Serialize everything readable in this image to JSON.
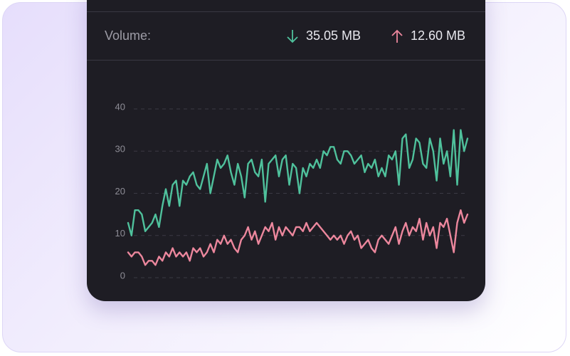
{
  "header": {
    "label": "Volume:",
    "down": "35.05 MB",
    "up": "12.60 MB"
  },
  "chart_data": {
    "type": "line",
    "ylim": [
      0,
      40
    ],
    "yticks": [
      0,
      10,
      20,
      30,
      40
    ],
    "grid": true,
    "series": [
      {
        "color": "#4fc19c",
        "values": [
          13,
          10,
          16,
          16,
          15,
          11,
          12,
          13,
          15,
          12,
          17,
          21,
          17,
          22,
          23,
          17,
          23,
          22,
          24,
          25,
          22,
          21,
          24,
          27,
          20,
          24,
          28,
          26,
          27,
          29,
          25,
          22,
          27,
          24,
          19,
          27,
          28,
          25,
          24,
          28,
          18,
          27,
          28,
          29,
          24,
          28,
          29,
          22,
          27,
          26,
          20,
          26,
          24,
          27,
          26,
          28,
          26,
          30,
          29,
          31,
          31,
          28,
          27,
          30,
          30,
          29,
          27,
          28,
          29,
          25,
          27,
          26,
          28,
          24,
          26,
          24,
          29,
          28,
          30,
          22,
          33,
          34,
          26,
          28,
          33,
          32,
          27,
          26,
          33,
          30,
          23,
          33,
          27,
          30,
          24,
          35,
          22,
          35,
          30,
          33
        ]
      },
      {
        "color": "#ec879d",
        "values": [
          6,
          5,
          6,
          6,
          5,
          3,
          4,
          4,
          3,
          5,
          4,
          6,
          5,
          7,
          5,
          6,
          5,
          6,
          4,
          7,
          6,
          7,
          5,
          6,
          8,
          6,
          9,
          8,
          10,
          8,
          9,
          7,
          6,
          9,
          10,
          12,
          9,
          11,
          8,
          10,
          12,
          11,
          13,
          9,
          12,
          10,
          12,
          11,
          10,
          12,
          12,
          11,
          13,
          11,
          12,
          13,
          12,
          11,
          10,
          9,
          10,
          9,
          10,
          8,
          10,
          11,
          9,
          10,
          7,
          8,
          9,
          7,
          6,
          9,
          10,
          9,
          8,
          10,
          12,
          8,
          11,
          13,
          10,
          12,
          11,
          14,
          9,
          13,
          10,
          12,
          7,
          13,
          12,
          14,
          10,
          6,
          13,
          16,
          13,
          15
        ]
      }
    ]
  }
}
